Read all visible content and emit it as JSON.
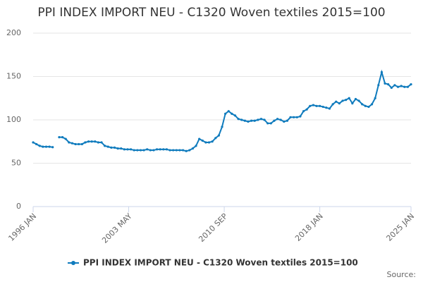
{
  "chart_data": {
    "type": "line",
    "title": "PPI INDEX IMPORT NEU - C1320 Woven textiles 2015=100",
    "source": "Source:",
    "x": [
      "1996 JAN",
      "1996 APR",
      "1996 JUL",
      "1996 OCT",
      "1997 JAN",
      "1997 APR",
      "1997 JUL",
      "1997 OCT",
      "1998 JAN",
      "1998 APR",
      "1998 JUL",
      "1998 OCT",
      "1999 JAN",
      "1999 APR",
      "1999 JUL",
      "1999 OCT",
      "2000 JAN",
      "2000 APR",
      "2000 JUL",
      "2000 OCT",
      "2001 JAN",
      "2001 APR",
      "2001 JUL",
      "2001 OCT",
      "2002 JAN",
      "2002 APR",
      "2002 JUL",
      "2002 OCT",
      "2003 JAN",
      "2003 APR",
      "2003 JUL",
      "2003 OCT",
      "2004 JAN",
      "2004 APR",
      "2004 JUL",
      "2004 OCT",
      "2005 JAN",
      "2005 APR",
      "2005 JUL",
      "2005 OCT",
      "2006 JAN",
      "2006 APR",
      "2006 JUL",
      "2006 OCT",
      "2007 JAN",
      "2007 APR",
      "2007 JUL",
      "2007 OCT",
      "2008 JAN",
      "2008 APR",
      "2008 JUL",
      "2008 OCT",
      "2009 JAN",
      "2009 APR",
      "2009 JUL",
      "2009 OCT",
      "2010 JAN",
      "2010 APR",
      "2010 JUL",
      "2010 OCT",
      "2011 JAN",
      "2011 APR",
      "2011 JUL",
      "2011 OCT",
      "2012 JAN",
      "2012 APR",
      "2012 JUL",
      "2012 OCT",
      "2013 JAN",
      "2013 APR",
      "2013 JUL",
      "2013 OCT",
      "2014 JAN",
      "2014 APR",
      "2014 JUL",
      "2014 OCT",
      "2015 JAN",
      "2015 APR",
      "2015 JUL",
      "2015 OCT",
      "2016 JAN",
      "2016 APR",
      "2016 JUL",
      "2016 OCT",
      "2017 JAN",
      "2017 APR",
      "2017 JUL",
      "2017 OCT",
      "2018 JAN",
      "2018 APR",
      "2018 JUL",
      "2018 OCT",
      "2019 JAN",
      "2019 APR",
      "2019 JUL",
      "2019 OCT",
      "2020 JAN",
      "2020 APR",
      "2020 JUL",
      "2020 OCT",
      "2021 JAN",
      "2021 APR",
      "2021 JUL",
      "2021 OCT",
      "2022 JAN",
      "2022 APR",
      "2022 JUL",
      "2022 OCT",
      "2023 JAN",
      "2023 APR",
      "2023 JUL",
      "2023 OCT",
      "2024 JAN",
      "2024 APR",
      "2024 JUL",
      "2024 OCT",
      "2025 JAN"
    ],
    "series": [
      {
        "name": "PPI INDEX IMPORT NEU - C1320 Woven textiles 2015=100",
        "color": "#0f7bbd",
        "values": [
          74,
          72,
          70,
          69,
          69,
          69,
          68.5,
          null,
          80,
          80,
          78,
          74,
          73,
          72,
          72,
          72,
          74,
          75,
          75,
          75,
          74,
          74,
          70,
          69,
          68,
          68,
          67,
          67,
          66,
          66,
          66,
          65,
          65,
          65,
          65,
          66,
          65,
          65,
          66,
          66,
          66,
          66,
          65,
          65,
          65,
          65,
          65,
          64,
          65,
          67,
          70,
          78,
          76,
          74,
          74,
          75,
          79,
          82,
          92,
          107,
          110,
          107,
          105,
          101,
          100,
          99,
          98,
          99,
          99,
          100,
          101,
          100,
          96,
          96,
          99,
          101,
          100,
          98,
          99,
          103,
          103,
          103,
          104,
          110,
          112,
          116,
          117,
          116,
          116,
          115,
          114,
          113,
          118,
          121,
          119,
          122,
          123,
          125,
          119,
          124,
          122,
          118,
          116,
          115,
          118,
          125,
          140,
          155,
          142,
          141,
          137,
          140,
          138,
          139,
          138,
          138,
          141
        ]
      }
    ],
    "xlim": [
      "1996 JAN",
      "2025 JAN"
    ],
    "xticks": [
      "1996 JAN",
      "2003 MAY",
      "2010 SEP",
      "2018 JAN",
      "2025 JAN"
    ],
    "ylim": [
      0,
      200
    ],
    "yticks": [
      0,
      50,
      100,
      150,
      200
    ],
    "grid": true
  }
}
